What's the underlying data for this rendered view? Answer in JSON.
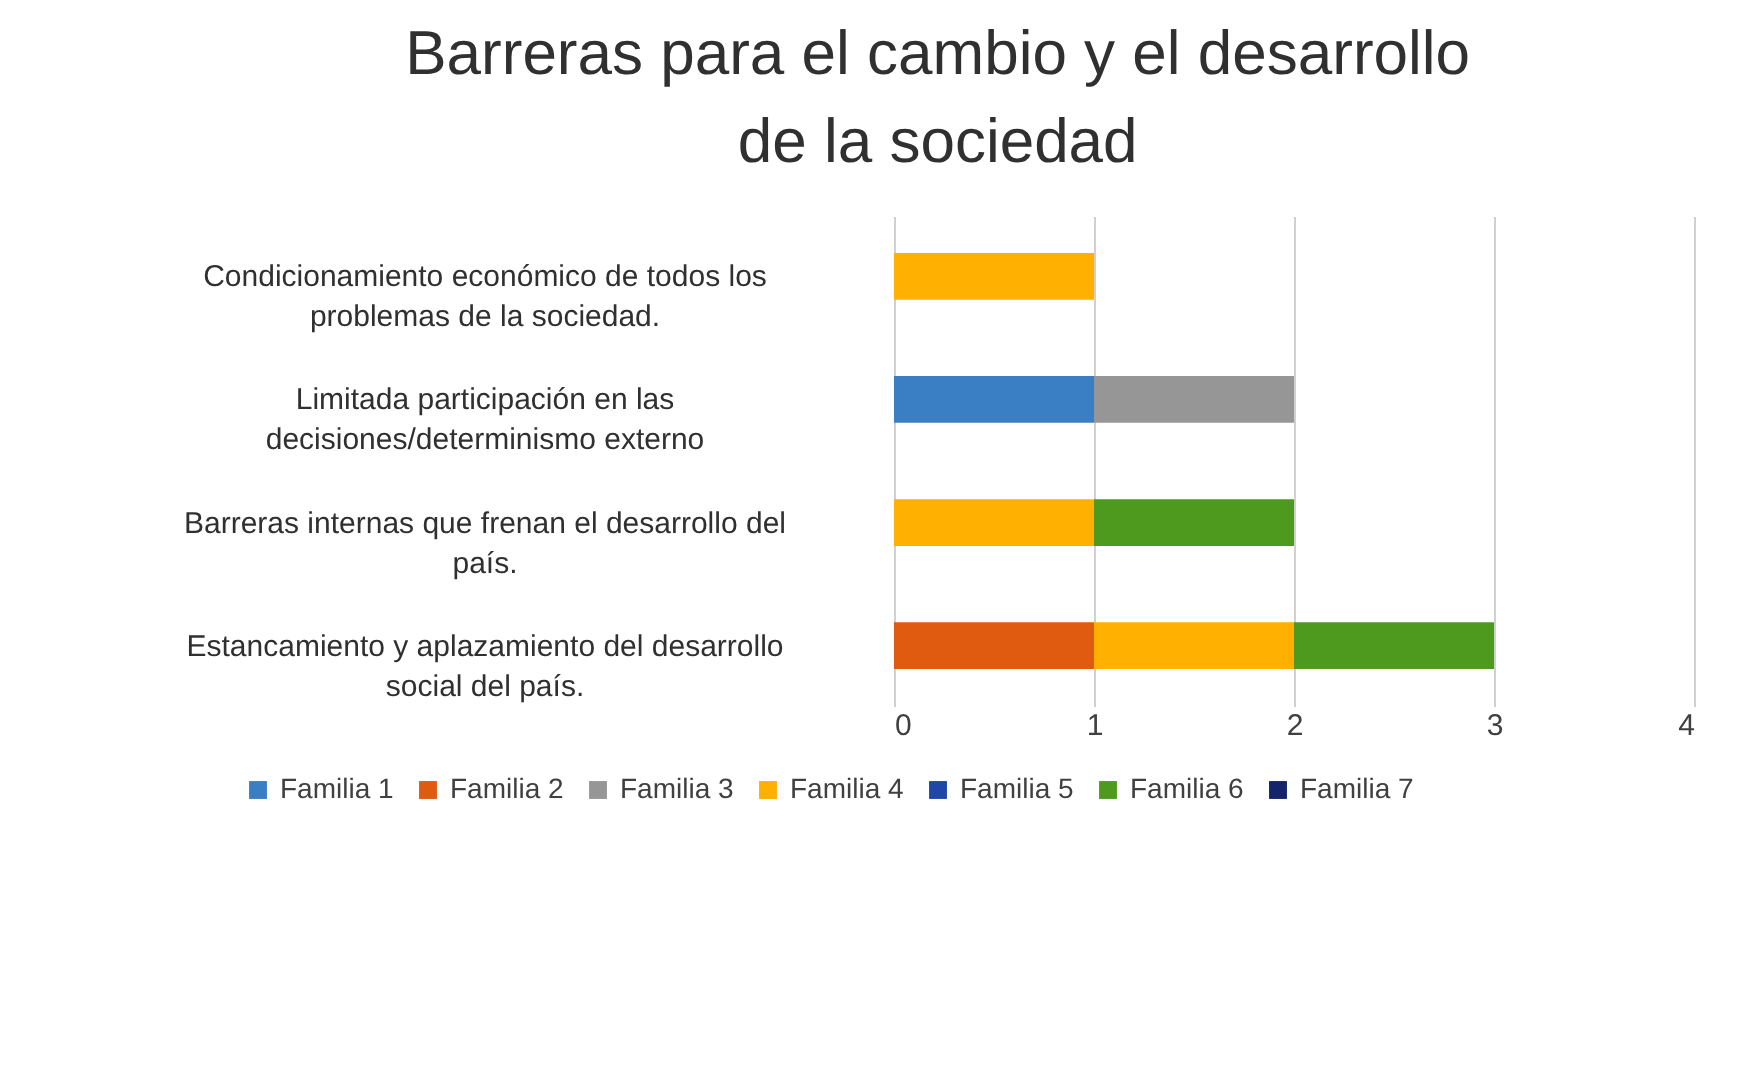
{
  "chart_data": {
    "type": "bar",
    "orientation": "horizontal",
    "stacked": true,
    "title": "Barreras para el cambio y el desarrollo de la sociedad",
    "categories": [
      "Condicionamiento económico de todos los problemas de la sociedad.",
      "Limitada participación en las decisiones/determinismo externo",
      "Barreras internas que frenan el desarrollo del país.",
      "Estancamiento  y aplazamiento del desarrollo social del país."
    ],
    "series": [
      {
        "name": "Familia 1",
        "color": "#3a7fc4",
        "values": [
          null,
          1,
          null,
          null
        ]
      },
      {
        "name": "Familia 2",
        "color": "#e05a10",
        "values": [
          null,
          null,
          null,
          1
        ]
      },
      {
        "name": "Familia 3",
        "color": "#969696",
        "values": [
          null,
          1,
          null,
          null
        ]
      },
      {
        "name": "Familia 4",
        "color": "#ffb000",
        "values": [
          1,
          null,
          1,
          1
        ]
      },
      {
        "name": "Familia 5",
        "color": "#1f47a8",
        "values": [
          null,
          null,
          null,
          null
        ]
      },
      {
        "name": "Familia 6",
        "color": "#4e9a1f",
        "values": [
          null,
          null,
          1,
          1
        ]
      },
      {
        "name": "Familia 7",
        "color": "#14246b",
        "values": [
          null,
          null,
          null,
          null
        ]
      }
    ],
    "xlim": [
      0,
      4
    ],
    "xticks": [
      0,
      1,
      2,
      3,
      4
    ],
    "grid": "x",
    "legend": "bottom"
  }
}
